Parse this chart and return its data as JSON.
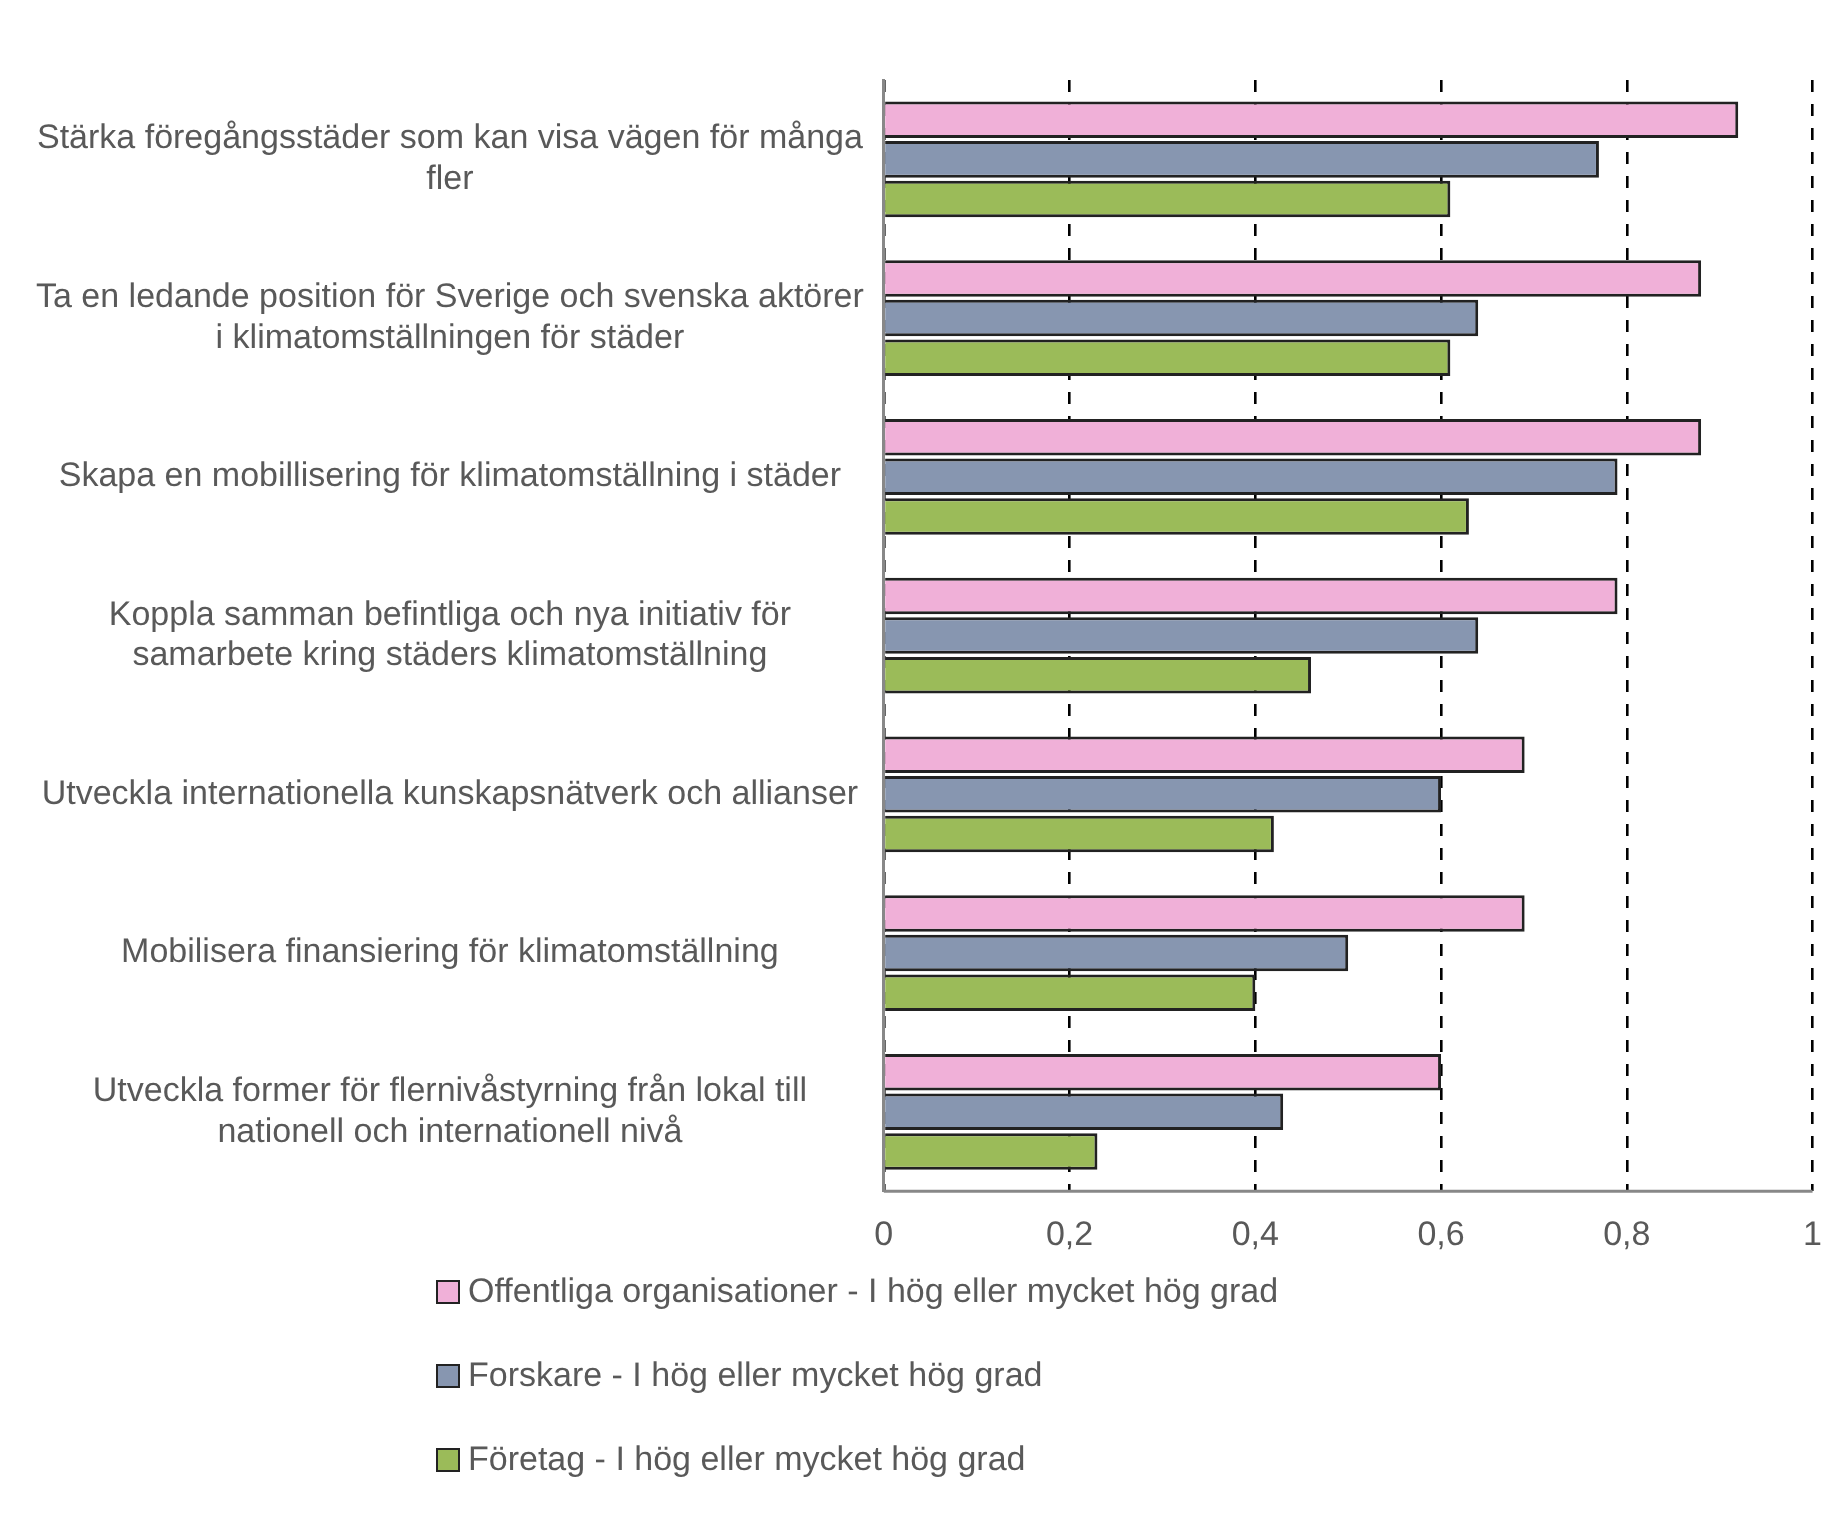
{
  "chart_data": {
    "type": "bar",
    "orientation": "horizontal",
    "categories": [
      "Stärka föregångsstäder som kan visa vägen för många fler",
      "Ta en ledande position för Sverige och svenska aktörer i klimatomställningen för städer",
      "Skapa en mobillisering för klimatomställning i städer",
      "Koppla samman befintliga och nya initiativ för samarbete kring städers klimatomställning",
      "Utveckla internationella kunskapsnätverk och allianser",
      "Mobilisera finansiering för klimatomställning",
      "Utveckla former för flernivåstyrning från lokal till nationell och internationell nivå"
    ],
    "series": [
      {
        "name": "Offentliga organisationer - I hög eller mycket hög grad",
        "color": "#f0b0d8",
        "values": [
          0.92,
          0.88,
          0.88,
          0.79,
          0.69,
          0.69,
          0.6
        ]
      },
      {
        "name": "Forskare - I hög eller mycket hög grad",
        "color": "#8796b0",
        "values": [
          0.77,
          0.64,
          0.79,
          0.64,
          0.6,
          0.5,
          0.43
        ]
      },
      {
        "name": "Företag - I hög eller mycket hög grad",
        "color": "#9bbb59",
        "values": [
          0.61,
          0.61,
          0.63,
          0.46,
          0.42,
          0.4,
          0.23
        ]
      }
    ],
    "xlim": [
      0,
      1
    ],
    "xticks": [
      0,
      {
        "value": 0.2,
        "label": "0,2"
      },
      {
        "value": 0.4,
        "label": "0,4"
      },
      {
        "value": 0.6,
        "label": "0,6"
      },
      {
        "value": 0.8,
        "label": "0,8"
      },
      1
    ],
    "grid": "x",
    "legend": "bottom"
  }
}
